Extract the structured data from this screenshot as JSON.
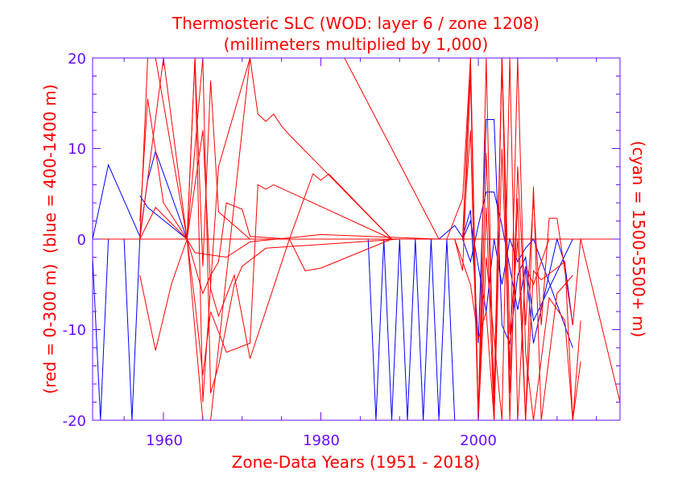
{
  "chart_data": {
    "type": "line",
    "title": "Thermosteric SLC (WOD: layer 6 / zone 1208)",
    "subtitle": "(millimeters multiplied by 1,000)",
    "xlabel": "Zone-Data Years (1951 - 2018)",
    "ylabel_left_red": "(red = 0-300 m)",
    "ylabel_left_blue": "(blue = 400-1400 m)",
    "ylabel_right": "(cyan = 1500-5500+ m)",
    "xlim": [
      1951,
      2018
    ],
    "ylim": [
      -20,
      20
    ],
    "x_ticks": [
      "1960",
      "1980",
      "2000"
    ],
    "y_ticks": [
      "20",
      "10",
      "0",
      "-10",
      "-20"
    ],
    "grid": false,
    "colors": {
      "red": "#ff0000",
      "blue": "#0000ff",
      "axis": "#6a0dff",
      "title": "#ff0000"
    },
    "series": [
      {
        "color": "#0000ff",
        "x": [
          1951,
          1953,
          1957,
          1958,
          1959,
          1963,
          1995,
          1997,
          1998,
          1999,
          2000,
          2001,
          2002,
          2003,
          2004,
          2005,
          2006,
          2007,
          2012
        ],
        "y": [
          0,
          8.2,
          0.3,
          6.5,
          9.7,
          0,
          0,
          1.5,
          0.2,
          3.2,
          -11.5,
          13.2,
          13.2,
          -9.5,
          -11.5,
          -4,
          -2,
          -9,
          0
        ]
      },
      {
        "color": "#0000ff",
        "x": [
          1951,
          1952,
          1953,
          1955,
          1956,
          1957,
          1963
        ],
        "y": [
          -2,
          -20,
          0,
          0,
          -20,
          0,
          0
        ]
      },
      {
        "color": "#0000ff",
        "x": [
          1986,
          1987,
          1988,
          1989,
          1990,
          1991,
          1992,
          1993,
          1994,
          1995,
          1996,
          1997
        ],
        "y": [
          0,
          -20,
          0,
          -20,
          0,
          -20,
          0,
          -20,
          0,
          -20,
          0,
          -20
        ]
      },
      {
        "color": "#0000ff",
        "x": [
          1957,
          1958,
          1963,
          1998,
          1999,
          2000,
          2001,
          2002,
          2003,
          2005,
          2006,
          2007,
          2010,
          2011,
          2012
        ],
        "y": [
          4.8,
          3.5,
          0,
          0,
          -2.5,
          1.5,
          5.2,
          5.2,
          1.5,
          -7.8,
          -3,
          -11.5,
          0,
          -2.8,
          -9.5
        ]
      },
      {
        "color": "#0000ff",
        "x": [
          1998,
          1999,
          2000,
          2001,
          2002,
          2003,
          2004,
          2005,
          2006,
          2007,
          2012
        ],
        "y": [
          0,
          2,
          -3,
          -8,
          0,
          -5,
          0,
          -2.5,
          -1,
          0,
          -12
        ]
      },
      {
        "color": "#0000ff",
        "x": [
          1951,
          2018
        ],
        "y": [
          0,
          0
        ]
      },
      {
        "color": "#ff0000",
        "x": [
          1957,
          1958,
          1959,
          1963,
          1964,
          1965,
          1966,
          1967,
          1971,
          1980,
          1989,
          1995
        ],
        "y": [
          0,
          20,
          20,
          0,
          20,
          -3,
          17.5,
          3,
          0,
          0,
          0,
          0
        ]
      },
      {
        "color": "#ff0000",
        "x": [
          1957,
          1958,
          1960,
          1963,
          1964,
          1965,
          1967,
          1971,
          1972,
          1973,
          1974,
          1975,
          1976,
          1989
        ],
        "y": [
          2,
          15.5,
          4,
          0,
          20,
          -18,
          8,
          20,
          13.8,
          13,
          13.8,
          12.5,
          11.5,
          0
        ]
      },
      {
        "color": "#ff0000",
        "x": [
          1957,
          1959,
          1961,
          1963,
          1964,
          1965,
          1966,
          1968,
          1971,
          1972,
          1973,
          1974,
          1989
        ],
        "y": [
          -4,
          -12.3,
          -5,
          0,
          -7,
          -15,
          -8,
          -12.5,
          -11.5,
          6,
          5.5,
          6,
          0
        ]
      },
      {
        "color": "#ff0000",
        "x": [
          1963,
          1965,
          1966,
          1967,
          1968,
          1970,
          1971,
          1976,
          1979,
          1980,
          1981,
          1989
        ],
        "y": [
          0,
          -6,
          -4,
          -2.5,
          4,
          3.3,
          0.3,
          0,
          7.2,
          6.5,
          7.2,
          0
        ]
      },
      {
        "color": "#ff0000",
        "x": [
          1963,
          1965,
          1966,
          1967,
          1969,
          1971,
          1976,
          1978,
          1980,
          1989
        ],
        "y": [
          0,
          12,
          -5.5,
          -8.5,
          -4,
          -13.2,
          0,
          -3.5,
          -3.2,
          0
        ]
      },
      {
        "color": "#ff0000",
        "x": [
          1963,
          1965,
          1966,
          1967,
          1969,
          1970,
          1973,
          1990
        ],
        "y": [
          0,
          20,
          -17,
          -14,
          -5,
          -3,
          -1,
          0
        ]
      },
      {
        "color": "#ff0000",
        "x": [
          1957,
          1959,
          1963,
          1964,
          1968,
          1971,
          1980,
          1995
        ],
        "y": [
          0,
          3.5,
          0,
          -1.5,
          -2,
          -0.3,
          0.5,
          0
        ]
      },
      {
        "color": "#ff0000",
        "x": [
          1957,
          1960,
          1963,
          1965,
          1966,
          1971,
          1976,
          1983,
          1995
        ],
        "y": [
          0,
          20,
          0,
          -20,
          -20,
          20,
          20,
          20,
          0
        ]
      },
      {
        "color": "#ff0000",
        "x": [
          1996,
          1998,
          1999,
          2000,
          2001,
          2002,
          2003,
          2004,
          2005,
          2006,
          2007,
          2008,
          2009,
          2010,
          2012,
          2013,
          2018
        ],
        "y": [
          0,
          4.5,
          20,
          -20,
          20,
          -20,
          20,
          -20,
          8,
          -9.5,
          4.5,
          -9.5,
          2.3,
          2.3,
          -9.5,
          0,
          -18
        ]
      },
      {
        "color": "#ff0000",
        "x": [
          1997,
          1998,
          1999,
          2000,
          2001,
          2002,
          2003,
          2004,
          2005,
          2006,
          2007,
          2008,
          2011,
          2012,
          2013
        ],
        "y": [
          0,
          -3.5,
          18,
          -20,
          9.5,
          -17,
          20,
          -17,
          4.5,
          -20,
          -3.5,
          -4.5,
          -2.5,
          -20,
          -13.5
        ]
      },
      {
        "color": "#ff0000",
        "x": [
          1998,
          1999,
          2000,
          2001,
          2002,
          2003,
          2004,
          2005,
          2006,
          2007,
          2008,
          2010,
          2012
        ],
        "y": [
          0,
          12,
          -20,
          3.5,
          -20,
          20,
          -10.5,
          0,
          -20,
          5.8,
          -20,
          -6,
          -4
        ]
      },
      {
        "color": "#ff0000",
        "x": [
          1997,
          1999,
          2000,
          2001,
          2002,
          2003,
          2004,
          2005,
          2006,
          2007,
          2009,
          2011,
          2012,
          2013
        ],
        "y": [
          0,
          -5,
          -11,
          -8,
          -20,
          10,
          -14.5,
          20,
          -12.5,
          -20,
          -6.5,
          -9,
          -20,
          -9
        ]
      },
      {
        "color": "#ff0000",
        "x": [
          1998,
          1999,
          2000,
          2001,
          2003,
          2004,
          2005,
          2006,
          2007,
          2009,
          2011
        ],
        "y": [
          0,
          20,
          -20,
          -2,
          -20,
          20,
          -20,
          -3,
          -5,
          0,
          0
        ]
      },
      {
        "color": "#ff0000",
        "x": [
          1951,
          2018
        ],
        "y": [
          0,
          0
        ]
      }
    ]
  }
}
